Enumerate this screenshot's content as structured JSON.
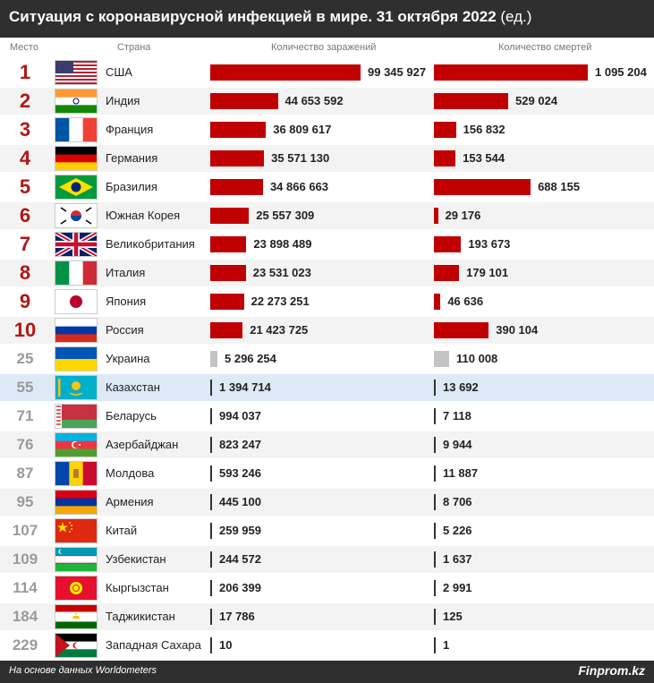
{
  "header": {
    "title": "Ситуация с коронавирусной инфекцией в мире. 31 октября 2022",
    "unit": "(ед.)"
  },
  "columns": {
    "rank": "Место",
    "country": "Страна",
    "cases": "Количество заражений",
    "deaths": "Количество смертей"
  },
  "footer": {
    "source": "На основе данных Worldometers",
    "brand": "Finprom.kz"
  },
  "colors": {
    "top_bar": "#c00000",
    "other_bar": "#c4c4c4",
    "rank_top": "#b41515",
    "rank_other": "#9a9a9a",
    "highlight_row": "#dde9f6"
  },
  "chart_data": {
    "type": "bar",
    "title": "Ситуация с коронавирусной инфекцией в мире. 31 октября 2022 (ед.)",
    "categories": [
      "США",
      "Индия",
      "Франция",
      "Германия",
      "Бразилия",
      "Южная Корея",
      "Великобритания",
      "Италия",
      "Япония",
      "Россия",
      "Украина",
      "Казахстан",
      "Беларусь",
      "Азербайджан",
      "Молдова",
      "Армения",
      "Китай",
      "Узбекистан",
      "Кыргызстан",
      "Таджикистан",
      "Западная Сахара"
    ],
    "series": [
      {
        "name": "Количество заражений",
        "values": [
          99345927,
          44653592,
          36809617,
          35571130,
          34866663,
          25557309,
          23898489,
          23531023,
          22273251,
          21423725,
          5296254,
          1394714,
          994037,
          823247,
          593246,
          445100,
          259959,
          244572,
          206399,
          17786,
          10
        ]
      },
      {
        "name": "Количество смертей",
        "values": [
          1095204,
          529024,
          156832,
          153544,
          688155,
          29176,
          193673,
          179101,
          46636,
          390104,
          110008,
          13692,
          7118,
          9944,
          11887,
          8706,
          5226,
          1637,
          2991,
          125,
          1
        ]
      }
    ],
    "rows": [
      {
        "rank": "1",
        "country": "США",
        "flag": "usa-flag",
        "cases": 99345927,
        "cases_label": "99 345 927",
        "deaths": 1095204,
        "deaths_label": "1 095 204"
      },
      {
        "rank": "2",
        "country": "Индия",
        "flag": "india-flag",
        "cases": 44653592,
        "cases_label": "44 653 592",
        "deaths": 529024,
        "deaths_label": "529 024"
      },
      {
        "rank": "3",
        "country": "Франция",
        "flag": "france-flag",
        "cases": 36809617,
        "cases_label": "36 809 617",
        "deaths": 156832,
        "deaths_label": "156 832"
      },
      {
        "rank": "4",
        "country": "Германия",
        "flag": "germany-flag",
        "cases": 35571130,
        "cases_label": "35 571 130",
        "deaths": 153544,
        "deaths_label": "153 544"
      },
      {
        "rank": "5",
        "country": "Бразилия",
        "flag": "brazil-flag",
        "cases": 34866663,
        "cases_label": "34 866 663",
        "deaths": 688155,
        "deaths_label": "688 155"
      },
      {
        "rank": "6",
        "country": "Южная Корея",
        "flag": "south-korea-flag",
        "cases": 25557309,
        "cases_label": "25 557 309",
        "deaths": 29176,
        "deaths_label": "29 176"
      },
      {
        "rank": "7",
        "country": "Великобритания",
        "flag": "uk-flag",
        "cases": 23898489,
        "cases_label": "23 898 489",
        "deaths": 193673,
        "deaths_label": "193 673"
      },
      {
        "rank": "8",
        "country": "Италия",
        "flag": "italy-flag",
        "cases": 23531023,
        "cases_label": "23 531 023",
        "deaths": 179101,
        "deaths_label": "179 101"
      },
      {
        "rank": "9",
        "country": "Япония",
        "flag": "japan-flag",
        "cases": 22273251,
        "cases_label": "22 273 251",
        "deaths": 46636,
        "deaths_label": "46 636"
      },
      {
        "rank": "10",
        "country": "Россия",
        "flag": "russia-flag",
        "cases": 21423725,
        "cases_label": "21 423 725",
        "deaths": 390104,
        "deaths_label": "390 104"
      },
      {
        "rank": "25",
        "country": "Украина",
        "flag": "ukraine-flag",
        "cases": 5296254,
        "cases_label": "5 296 254",
        "deaths": 110008,
        "deaths_label": "110 008"
      },
      {
        "rank": "55",
        "country": "Казахстан",
        "flag": "kazakhstan-flag",
        "cases": 1394714,
        "cases_label": "1 394 714",
        "deaths": 13692,
        "deaths_label": "13 692",
        "highlight": true
      },
      {
        "rank": "71",
        "country": "Беларусь",
        "flag": "belarus-flag",
        "cases": 994037,
        "cases_label": "994 037",
        "deaths": 7118,
        "deaths_label": "7 118"
      },
      {
        "rank": "76",
        "country": "Азербайджан",
        "flag": "azerbaijan-flag",
        "cases": 823247,
        "cases_label": "823 247",
        "deaths": 9944,
        "deaths_label": "9 944"
      },
      {
        "rank": "87",
        "country": "Молдова",
        "flag": "moldova-flag",
        "cases": 593246,
        "cases_label": "593 246",
        "deaths": 11887,
        "deaths_label": "11 887"
      },
      {
        "rank": "95",
        "country": "Армения",
        "flag": "armenia-flag",
        "cases": 445100,
        "cases_label": "445 100",
        "deaths": 8706,
        "deaths_label": "8 706"
      },
      {
        "rank": "107",
        "country": "Китай",
        "flag": "china-flag",
        "cases": 259959,
        "cases_label": "259 959",
        "deaths": 5226,
        "deaths_label": "5 226"
      },
      {
        "rank": "109",
        "country": "Узбекистан",
        "flag": "uzbekistan-flag",
        "cases": 244572,
        "cases_label": "244 572",
        "deaths": 1637,
        "deaths_label": "1 637"
      },
      {
        "rank": "114",
        "country": "Кыргызстан",
        "flag": "kyrgyzstan-flag",
        "cases": 206399,
        "cases_label": "206 399",
        "deaths": 2991,
        "deaths_label": "2 991"
      },
      {
        "rank": "184",
        "country": "Таджикистан",
        "flag": "tajikistan-flag",
        "cases": 17786,
        "cases_label": "17 786",
        "deaths": 125,
        "deaths_label": "125"
      },
      {
        "rank": "229",
        "country": "Западная Сахара",
        "flag": "western-sahara-flag",
        "cases": 10,
        "cases_label": "10",
        "deaths": 1,
        "deaths_label": "1"
      }
    ]
  }
}
